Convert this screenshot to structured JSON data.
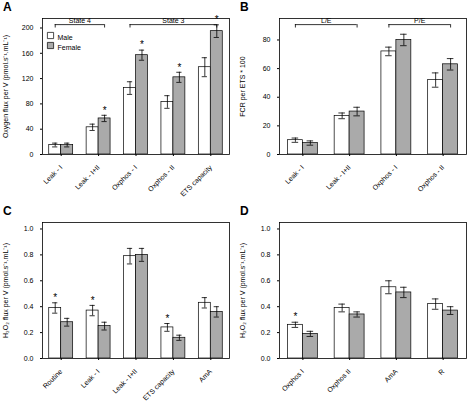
{
  "chart_data": [
    {
      "type": "bar",
      "title": "A",
      "categories": [
        "Leak - I",
        "Leak - I+II",
        "Oxphos - I",
        "Oxphos - II",
        "ETS capacity"
      ],
      "series": [
        {
          "name": "Male",
          "color": "white",
          "values": [
            15,
            43,
            105,
            83,
            138
          ],
          "errors": [
            3,
            5,
            10,
            10,
            15
          ]
        },
        {
          "name": "Female",
          "color": "#aaaaaa",
          "values": [
            15,
            57,
            157,
            122,
            195
          ],
          "errors": [
            3,
            5,
            8,
            8,
            10
          ]
        }
      ],
      "ylabel": "Oxygen flux per V (pmol.s⁻¹.mL⁻¹)",
      "ylim": [
        0,
        215
      ],
      "yticks": [
        0,
        40,
        80,
        120,
        160,
        200
      ],
      "legend": "upper left",
      "annotations": [
        {
          "text": "*",
          "category": "Leak - I+II",
          "series": "Female"
        },
        {
          "text": "*",
          "category": "Oxphos - I",
          "series": "Female"
        },
        {
          "text": "*",
          "category": "Oxphos - II",
          "series": "Female"
        },
        {
          "text": "*",
          "category": "ETS capacity",
          "series": "Female"
        },
        {
          "text": "State 4",
          "from": "Leak - I",
          "to": "Leak - I+II"
        },
        {
          "text": "State 3",
          "from": "Oxphos - I",
          "to": "ETS capacity"
        }
      ]
    },
    {
      "type": "bar",
      "title": "B",
      "categories": [
        "Leak - I",
        "Leak - I+II",
        "Oxphos - I",
        "Oxphos - II"
      ],
      "series": [
        {
          "name": "Male",
          "color": "white",
          "values": [
            10,
            27,
            72,
            52
          ],
          "errors": [
            1.5,
            2,
            3,
            5
          ]
        },
        {
          "name": "Female",
          "color": "#aaaaaa",
          "values": [
            8,
            30,
            80,
            63
          ],
          "errors": [
            1.5,
            3,
            4,
            4
          ]
        }
      ],
      "ylabel": "FCR per ETS * 100",
      "ylim": [
        0,
        95
      ],
      "yticks": [
        0,
        20,
        40,
        60,
        80
      ],
      "annotations": [
        {
          "text": "L/E",
          "from": "Leak - I",
          "to": "Leak - I+II"
        },
        {
          "text": "P/E",
          "from": "Oxphos - I",
          "to": "Oxphos - II"
        }
      ]
    },
    {
      "type": "bar",
      "title": "C",
      "categories": [
        "Routine",
        "Leak - I",
        "Leak - I+II",
        "ETS capacity",
        "AmA"
      ],
      "series": [
        {
          "name": "Male",
          "color": "white",
          "values": [
            0.39,
            0.37,
            0.79,
            0.24,
            0.43
          ],
          "errors": [
            0.04,
            0.04,
            0.06,
            0.03,
            0.04
          ]
        },
        {
          "name": "Female",
          "color": "#aaaaaa",
          "values": [
            0.28,
            0.25,
            0.8,
            0.16,
            0.36
          ],
          "errors": [
            0.03,
            0.03,
            0.05,
            0.02,
            0.04
          ]
        }
      ],
      "ylabel": "H₂O₂ flux per V (pmol.s⁻¹.mL⁻¹)",
      "ylim": [
        0,
        1.05
      ],
      "yticks": [
        {
          "value": 0,
          "label": "0.0"
        },
        0.2,
        0.4,
        0.6,
        0.8,
        {
          "value": 1,
          "label": "1.0"
        }
      ],
      "annotations": [
        {
          "text": "*",
          "category": "Routine",
          "series": "Male"
        },
        {
          "text": "*",
          "category": "Leak - I",
          "series": "Male"
        },
        {
          "text": "*",
          "category": "ETS capacity",
          "series": "Male"
        }
      ]
    },
    {
      "type": "bar",
      "title": "D",
      "categories": [
        "Oxphos I",
        "Oxphos II",
        "AmA",
        "R"
      ],
      "series": [
        {
          "name": "Male",
          "color": "white",
          "values": [
            0.26,
            0.39,
            0.55,
            0.42
          ],
          "errors": [
            0.02,
            0.03,
            0.05,
            0.04
          ]
        },
        {
          "name": "Female",
          "color": "#aaaaaa",
          "values": [
            0.19,
            0.34,
            0.51,
            0.37
          ],
          "errors": [
            0.02,
            0.02,
            0.04,
            0.03
          ]
        }
      ],
      "ylabel": "H₂O₂ flux per V (pmol.s⁻¹.mL⁻¹)",
      "ylim": [
        0,
        1.05
      ],
      "yticks": [
        {
          "value": 0,
          "label": "0.0"
        },
        0.2,
        0.4,
        0.6,
        0.8,
        {
          "value": 1,
          "label": "1.0"
        }
      ],
      "annotations": [
        {
          "text": "*",
          "category": "Oxphos I",
          "series": "Male"
        }
      ]
    }
  ]
}
